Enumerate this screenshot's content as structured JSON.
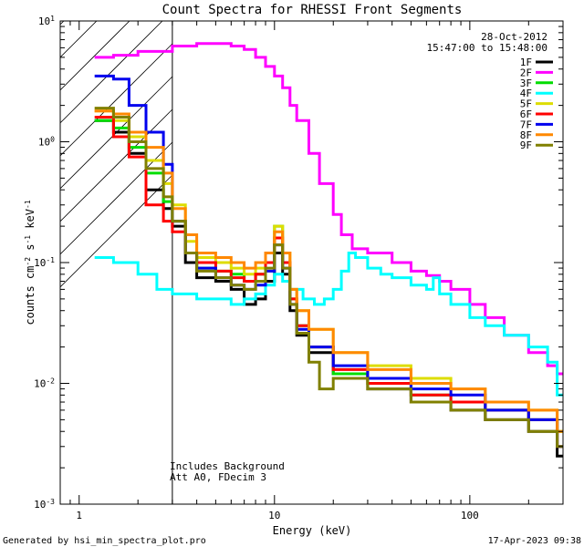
{
  "chart_data": {
    "type": "line",
    "title": "Count Spectra for RHESSI Front Segments",
    "xlabel": "Energy (keV)",
    "ylabel_parts": [
      "counts cm",
      "-2",
      " s",
      "-1",
      " keV",
      "-1"
    ],
    "x_scale": "log",
    "y_scale": "log",
    "xlim": [
      0.8,
      300
    ],
    "ylim": [
      0.001,
      10
    ],
    "x_ticks": [
      {
        "value": 1,
        "label": "1"
      },
      {
        "value": 10,
        "label": "10"
      },
      {
        "value": 100,
        "label": "100"
      }
    ],
    "y_ticks": [
      {
        "value": 0.001,
        "base": "10",
        "exp": "-3"
      },
      {
        "value": 0.01,
        "base": "10",
        "exp": "-2"
      },
      {
        "value": 0.1,
        "base": "10",
        "exp": "-1"
      },
      {
        "value": 1,
        "base": "10",
        "exp": "0"
      },
      {
        "value": 10,
        "base": "10",
        "exp": "1"
      }
    ],
    "date": "28-Oct-2012",
    "time_range": "15:47:00 to 15:48:00",
    "attenuator_edge_kev": 3,
    "annotations": [
      "Includes Background",
      "Att A0, FDecim 3"
    ],
    "footer_left": "Generated by hsi_min_spectra_plot.pro",
    "footer_right": "17-Apr-2023 09:38",
    "series": [
      {
        "name": "1F",
        "color": "#000000",
        "points": [
          [
            1.2,
            1.5
          ],
          [
            1.5,
            1.2
          ],
          [
            1.8,
            0.8
          ],
          [
            2.2,
            0.4
          ],
          [
            2.7,
            0.28
          ],
          [
            3,
            0.2
          ],
          [
            3.5,
            0.1
          ],
          [
            4,
            0.075
          ],
          [
            5,
            0.07
          ],
          [
            6,
            0.06
          ],
          [
            7,
            0.045
          ],
          [
            8,
            0.05
          ],
          [
            9,
            0.07
          ],
          [
            10,
            0.12
          ],
          [
            11,
            0.08
          ],
          [
            12,
            0.04
          ],
          [
            13,
            0.025
          ],
          [
            15,
            0.018
          ],
          [
            20,
            0.012
          ],
          [
            30,
            0.009
          ],
          [
            50,
            0.007
          ],
          [
            80,
            0.006
          ],
          [
            120,
            0.005
          ],
          [
            200,
            0.004
          ],
          [
            280,
            0.0025
          ]
        ]
      },
      {
        "name": "2F",
        "color": "#ff00ff",
        "points": [
          [
            1.2,
            5
          ],
          [
            1.5,
            5.2
          ],
          [
            2,
            5.6
          ],
          [
            3,
            6.2
          ],
          [
            4,
            6.5
          ],
          [
            5,
            6.5
          ],
          [
            6,
            6.2
          ],
          [
            7,
            5.8
          ],
          [
            8,
            5
          ],
          [
            9,
            4.2
          ],
          [
            10,
            3.5
          ],
          [
            11,
            2.8
          ],
          [
            12,
            2
          ],
          [
            13,
            1.5
          ],
          [
            15,
            0.8
          ],
          [
            17,
            0.45
          ],
          [
            20,
            0.25
          ],
          [
            22,
            0.17
          ],
          [
            25,
            0.13
          ],
          [
            30,
            0.12
          ],
          [
            40,
            0.1
          ],
          [
            50,
            0.085
          ],
          [
            60,
            0.078
          ],
          [
            70,
            0.07
          ],
          [
            80,
            0.06
          ],
          [
            100,
            0.045
          ],
          [
            120,
            0.035
          ],
          [
            150,
            0.025
          ],
          [
            200,
            0.018
          ],
          [
            250,
            0.014
          ],
          [
            280,
            0.012
          ]
        ]
      },
      {
        "name": "3F",
        "color": "#00dd00",
        "points": [
          [
            1.2,
            1.5
          ],
          [
            1.5,
            1.3
          ],
          [
            1.8,
            0.9
          ],
          [
            2.2,
            0.55
          ],
          [
            2.7,
            0.32
          ],
          [
            3,
            0.22
          ],
          [
            3.5,
            0.12
          ],
          [
            4,
            0.09
          ],
          [
            5,
            0.085
          ],
          [
            6,
            0.08
          ],
          [
            7,
            0.07
          ],
          [
            8,
            0.08
          ],
          [
            9,
            0.1
          ],
          [
            10,
            0.2
          ],
          [
            11,
            0.1
          ],
          [
            12,
            0.05
          ],
          [
            13,
            0.03
          ],
          [
            15,
            0.02
          ],
          [
            20,
            0.012
          ],
          [
            30,
            0.01
          ],
          [
            50,
            0.008
          ],
          [
            80,
            0.007
          ],
          [
            120,
            0.006
          ],
          [
            200,
            0.005
          ],
          [
            280,
            0.004
          ]
        ]
      },
      {
        "name": "4F",
        "color": "#00ffff",
        "points": [
          [
            1.2,
            0.11
          ],
          [
            1.5,
            0.1
          ],
          [
            2,
            0.08
          ],
          [
            2.5,
            0.06
          ],
          [
            3,
            0.055
          ],
          [
            4,
            0.05
          ],
          [
            5,
            0.05
          ],
          [
            6,
            0.045
          ],
          [
            7,
            0.05
          ],
          [
            8,
            0.055
          ],
          [
            9,
            0.065
          ],
          [
            10,
            0.08
          ],
          [
            11,
            0.07
          ],
          [
            12,
            0.06
          ],
          [
            14,
            0.05
          ],
          [
            16,
            0.045
          ],
          [
            18,
            0.05
          ],
          [
            20,
            0.06
          ],
          [
            22,
            0.085
          ],
          [
            24,
            0.12
          ],
          [
            26,
            0.11
          ],
          [
            30,
            0.09
          ],
          [
            35,
            0.08
          ],
          [
            40,
            0.075
          ],
          [
            50,
            0.065
          ],
          [
            60,
            0.06
          ],
          [
            65,
            0.075
          ],
          [
            70,
            0.055
          ],
          [
            80,
            0.045
          ],
          [
            100,
            0.035
          ],
          [
            120,
            0.03
          ],
          [
            150,
            0.025
          ],
          [
            200,
            0.02
          ],
          [
            250,
            0.015
          ],
          [
            280,
            0.008
          ]
        ]
      },
      {
        "name": "5F",
        "color": "#dddd00",
        "points": [
          [
            1.2,
            1.8
          ],
          [
            1.5,
            1.5
          ],
          [
            1.8,
            1.1
          ],
          [
            2.2,
            0.7
          ],
          [
            2.7,
            0.45
          ],
          [
            3,
            0.3
          ],
          [
            3.5,
            0.15
          ],
          [
            4,
            0.11
          ],
          [
            5,
            0.1
          ],
          [
            6,
            0.09
          ],
          [
            7,
            0.08
          ],
          [
            8,
            0.09
          ],
          [
            9,
            0.12
          ],
          [
            10,
            0.2
          ],
          [
            11,
            0.12
          ],
          [
            12,
            0.06
          ],
          [
            13,
            0.04
          ],
          [
            15,
            0.028
          ],
          [
            20,
            0.018
          ],
          [
            30,
            0.014
          ],
          [
            50,
            0.011
          ],
          [
            80,
            0.009
          ],
          [
            120,
            0.007
          ],
          [
            200,
            0.006
          ],
          [
            280,
            0.004
          ]
        ]
      },
      {
        "name": "6F",
        "color": "#ff0000",
        "points": [
          [
            1.2,
            1.6
          ],
          [
            1.5,
            1.1
          ],
          [
            1.8,
            0.75
          ],
          [
            2.2,
            0.3
          ],
          [
            2.7,
            0.22
          ],
          [
            3,
            0.18
          ],
          [
            3.5,
            0.12
          ],
          [
            4,
            0.1
          ],
          [
            5,
            0.085
          ],
          [
            6,
            0.075
          ],
          [
            7,
            0.07
          ],
          [
            8,
            0.08
          ],
          [
            9,
            0.1
          ],
          [
            10,
            0.16
          ],
          [
            11,
            0.1
          ],
          [
            12,
            0.05
          ],
          [
            13,
            0.03
          ],
          [
            15,
            0.02
          ],
          [
            20,
            0.013
          ],
          [
            30,
            0.01
          ],
          [
            50,
            0.008
          ],
          [
            80,
            0.007
          ],
          [
            120,
            0.006
          ],
          [
            200,
            0.005
          ],
          [
            280,
            0.003
          ]
        ]
      },
      {
        "name": "7F",
        "color": "#0000ee",
        "points": [
          [
            1.2,
            3.5
          ],
          [
            1.5,
            3.3
          ],
          [
            1.8,
            2
          ],
          [
            2.2,
            1.2
          ],
          [
            2.7,
            0.65
          ],
          [
            3,
            0.22
          ],
          [
            3.5,
            0.12
          ],
          [
            4,
            0.09
          ],
          [
            5,
            0.075
          ],
          [
            6,
            0.065
          ],
          [
            7,
            0.06
          ],
          [
            8,
            0.065
          ],
          [
            9,
            0.085
          ],
          [
            10,
            0.14
          ],
          [
            11,
            0.09
          ],
          [
            12,
            0.045
          ],
          [
            13,
            0.028
          ],
          [
            15,
            0.02
          ],
          [
            20,
            0.014
          ],
          [
            30,
            0.011
          ],
          [
            50,
            0.009
          ],
          [
            80,
            0.008
          ],
          [
            120,
            0.006
          ],
          [
            200,
            0.005
          ],
          [
            280,
            0.003
          ]
        ]
      },
      {
        "name": "8F",
        "color": "#ff8800",
        "points": [
          [
            1.2,
            1.8
          ],
          [
            1.5,
            1.7
          ],
          [
            1.8,
            1.2
          ],
          [
            2.2,
            0.9
          ],
          [
            2.7,
            0.55
          ],
          [
            3,
            0.28
          ],
          [
            3.5,
            0.17
          ],
          [
            4,
            0.12
          ],
          [
            5,
            0.11
          ],
          [
            6,
            0.1
          ],
          [
            7,
            0.09
          ],
          [
            8,
            0.1
          ],
          [
            9,
            0.12
          ],
          [
            10,
            0.18
          ],
          [
            11,
            0.12
          ],
          [
            12,
            0.06
          ],
          [
            13,
            0.04
          ],
          [
            15,
            0.028
          ],
          [
            20,
            0.018
          ],
          [
            30,
            0.013
          ],
          [
            50,
            0.01
          ],
          [
            80,
            0.009
          ],
          [
            120,
            0.007
          ],
          [
            200,
            0.006
          ],
          [
            280,
            0.004
          ]
        ]
      },
      {
        "name": "9F",
        "color": "#808000",
        "points": [
          [
            1.2,
            1.9
          ],
          [
            1.5,
            1.6
          ],
          [
            1.8,
            1
          ],
          [
            2.2,
            0.6
          ],
          [
            2.7,
            0.35
          ],
          [
            3,
            0.22
          ],
          [
            3.5,
            0.12
          ],
          [
            4,
            0.085
          ],
          [
            5,
            0.075
          ],
          [
            6,
            0.065
          ],
          [
            7,
            0.06
          ],
          [
            8,
            0.07
          ],
          [
            9,
            0.09
          ],
          [
            10,
            0.14
          ],
          [
            11,
            0.09
          ],
          [
            12,
            0.045
          ],
          [
            13,
            0.026
          ],
          [
            15,
            0.015
          ],
          [
            17,
            0.009
          ],
          [
            20,
            0.011
          ],
          [
            30,
            0.009
          ],
          [
            50,
            0.007
          ],
          [
            80,
            0.006
          ],
          [
            120,
            0.005
          ],
          [
            200,
            0.004
          ],
          [
            280,
            0.003
          ]
        ]
      }
    ]
  }
}
